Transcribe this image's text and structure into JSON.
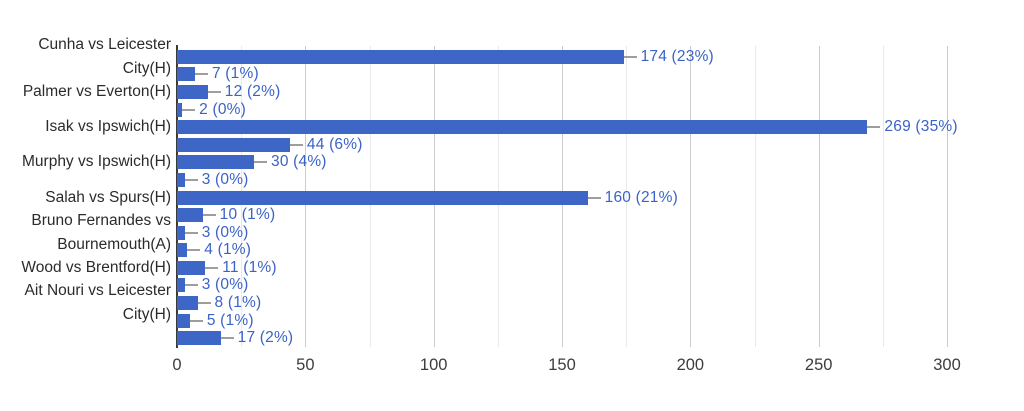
{
  "chart_data": {
    "type": "bar",
    "orientation": "horizontal",
    "title": "",
    "xlabel": "",
    "ylabel": "",
    "x_ticks": [
      0,
      50,
      100,
      150,
      200,
      250,
      300
    ],
    "x_minor_gridlines": [
      25,
      75,
      125,
      175,
      225,
      275
    ],
    "x_range": [
      0,
      325
    ],
    "gridlines_on": true,
    "bars": [
      {
        "label_lines": [
          "Cunha vs Leicester",
          "City(H)"
        ],
        "value": 174,
        "annotation": "174 (23%)"
      },
      {
        "label_lines": [],
        "value": 7,
        "annotation": "7 (1%)"
      },
      {
        "label_lines": [
          "Palmer vs Everton(H)"
        ],
        "value": 12,
        "annotation": "12 (2%)"
      },
      {
        "label_lines": [],
        "value": 2,
        "annotation": "2 (0%)"
      },
      {
        "label_lines": [
          "Isak vs Ipswich(H)"
        ],
        "value": 269,
        "annotation": "269 (35%)"
      },
      {
        "label_lines": [],
        "value": 44,
        "annotation": "44 (6%)"
      },
      {
        "label_lines": [
          "Murphy vs Ipswich(H)"
        ],
        "value": 30,
        "annotation": "30 (4%)"
      },
      {
        "label_lines": [],
        "value": 3,
        "annotation": "3 (0%)"
      },
      {
        "label_lines": [
          "Salah vs Spurs(H)"
        ],
        "value": 160,
        "annotation": "160 (21%)"
      },
      {
        "label_lines": [],
        "value": 10,
        "annotation": "10 (1%)"
      },
      {
        "label_lines": [
          "Bruno Fernandes vs",
          "Bournemouth(A)"
        ],
        "value": 3,
        "annotation": "3 (0%)"
      },
      {
        "label_lines": [],
        "value": 4,
        "annotation": "4 (1%)"
      },
      {
        "label_lines": [
          "Wood vs Brentford(H)"
        ],
        "value": 11,
        "annotation": "11 (1%)"
      },
      {
        "label_lines": [],
        "value": 3,
        "annotation": "3 (0%)"
      },
      {
        "label_lines": [
          "Ait Nouri vs Leicester",
          "City(H)"
        ],
        "value": 8,
        "annotation": "8 (1%)"
      },
      {
        "label_lines": [],
        "value": 5,
        "annotation": "5 (1%)"
      },
      {
        "label_lines": [],
        "value": 17,
        "annotation": "17 (2%)"
      }
    ],
    "colors": {
      "bar": "#3e66c6",
      "annotation_text": "#3a62c8",
      "annotation_stub": "#9e9e9e",
      "category_text": "#2b2b2b",
      "tick_text": "#3d3d3d",
      "major_gridline": "#cccccc",
      "minor_gridline": "#e9e9e9",
      "baseline": "#3a3a3a",
      "background": "#ffffff"
    }
  }
}
